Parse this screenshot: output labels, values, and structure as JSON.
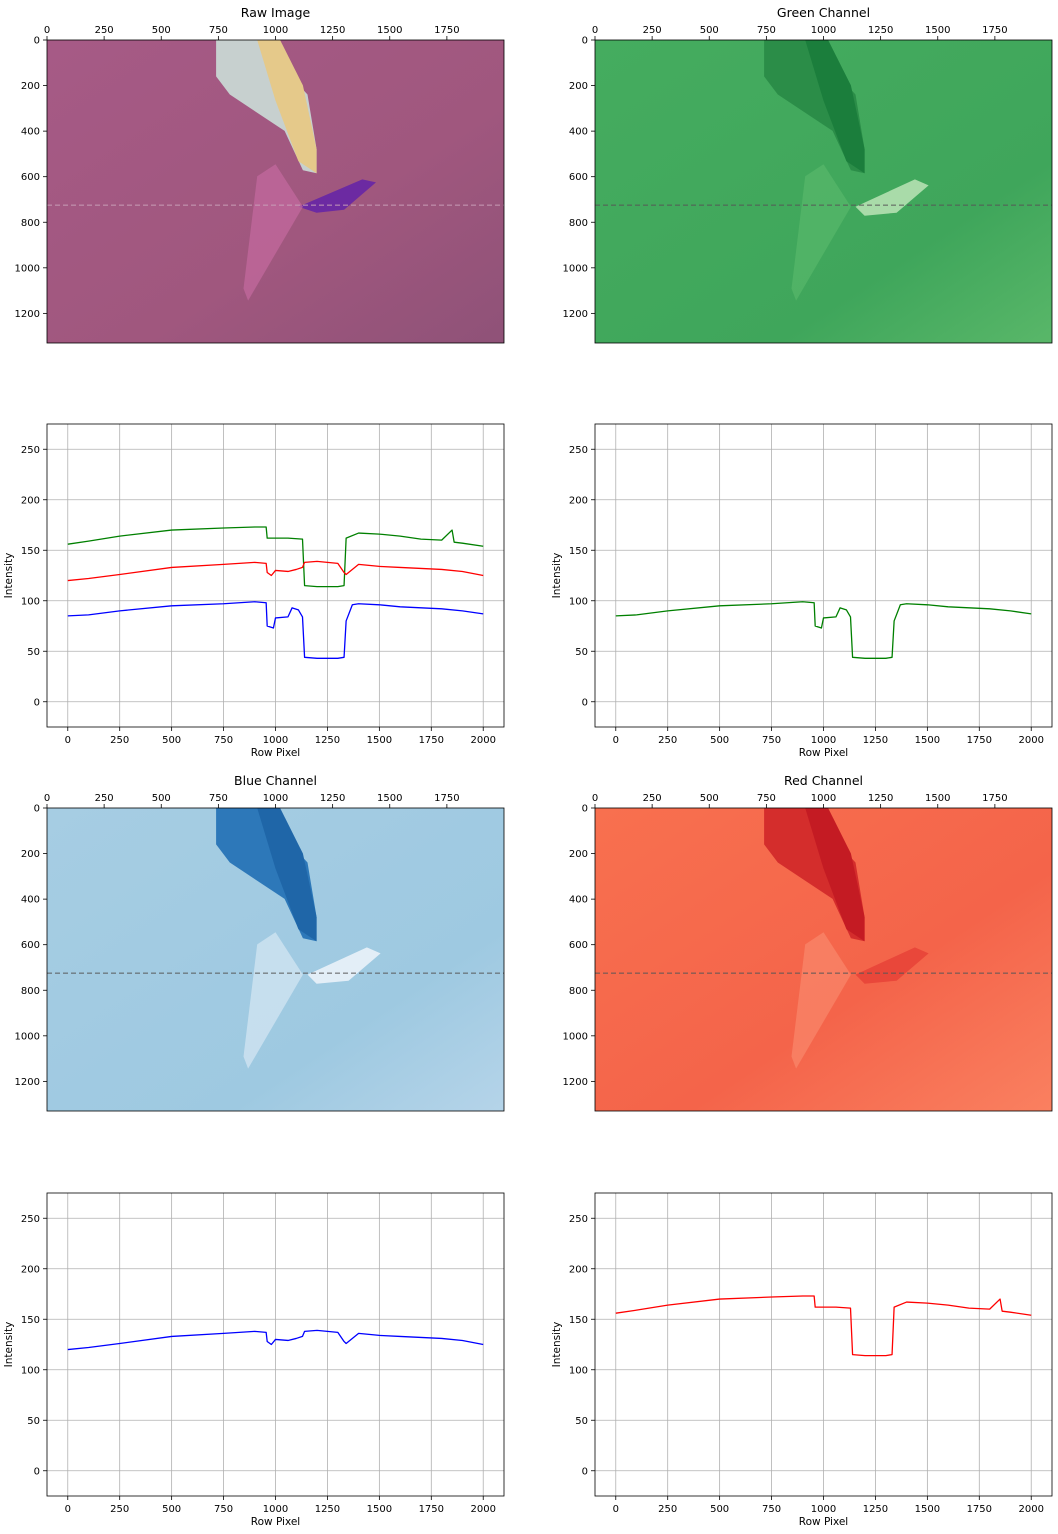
{
  "colors": {
    "raw_bg": "#a0577e",
    "green_bg": "#41a85c",
    "blue_bg": "#a9cfe4",
    "red_bg": "#f66a4a",
    "green_line": "#008000",
    "red_line": "#ff0000",
    "blue_line": "#0000ff",
    "grid": "#b0b0b0",
    "dashed_cut": "#555555"
  },
  "chart_data": [
    {
      "type": "image",
      "title": "Raw Image",
      "colormap": "rgb",
      "x_ticks": [
        "0",
        "250",
        "500",
        "750",
        "1000",
        "1250",
        "1500",
        "1750"
      ],
      "y_ticks": [
        "0",
        "200",
        "400",
        "600",
        "800",
        "1000",
        "1200"
      ],
      "xlim": [
        0,
        2000
      ],
      "ylim": [
        1330,
        0
      ],
      "cut_row": 725
    },
    {
      "type": "image",
      "title": "Green Channel",
      "colormap": "Greens",
      "x_ticks": [
        "0",
        "250",
        "500",
        "750",
        "1000",
        "1250",
        "1500",
        "1750"
      ],
      "y_ticks": [
        "0",
        "200",
        "400",
        "600",
        "800",
        "1000",
        "1200"
      ],
      "xlim": [
        0,
        2000
      ],
      "ylim": [
        1330,
        0
      ],
      "cut_row": 725
    },
    {
      "type": "line",
      "title": "",
      "xlabel": "Row Pixel",
      "ylabel": "Intensity",
      "xlim": [
        -100,
        2100
      ],
      "ylim": [
        -25,
        275
      ],
      "x_ticks": [
        "0",
        "250",
        "500",
        "750",
        "1000",
        "1250",
        "1500",
        "1750",
        "2000"
      ],
      "y_ticks": [
        "0",
        "50",
        "100",
        "150",
        "200",
        "250"
      ],
      "grid": true,
      "series": [
        {
          "color": "green",
          "x": [
            0,
            100,
            250,
            500,
            750,
            900,
            955,
            960,
            1000,
            1060,
            1130,
            1140,
            1200,
            1300,
            1330,
            1340,
            1400,
            1500,
            1600,
            1700,
            1800,
            1850,
            1860,
            1900,
            2000
          ],
          "values": [
            156,
            159,
            164,
            170,
            172,
            173,
            173,
            162,
            162,
            162,
            161,
            115,
            114,
            114,
            115,
            162,
            167,
            166,
            164,
            161,
            160,
            170,
            158,
            157,
            154
          ]
        },
        {
          "color": "red",
          "x": [
            0,
            100,
            250,
            500,
            750,
            900,
            955,
            960,
            980,
            1000,
            1060,
            1100,
            1130,
            1140,
            1200,
            1300,
            1330,
            1340,
            1400,
            1500,
            1600,
            1700,
            1800,
            1900,
            2000
          ],
          "values": [
            120,
            122,
            126,
            133,
            136,
            138,
            137,
            128,
            125,
            130,
            129,
            131,
            133,
            138,
            139,
            137,
            128,
            126,
            136,
            134,
            133,
            132,
            131,
            129,
            125
          ]
        },
        {
          "color": "blue",
          "x": [
            0,
            100,
            250,
            500,
            750,
            900,
            955,
            960,
            990,
            1000,
            1060,
            1080,
            1110,
            1130,
            1140,
            1200,
            1300,
            1330,
            1340,
            1370,
            1400,
            1500,
            1600,
            1700,
            1800,
            1900,
            2000
          ],
          "values": [
            85,
            86,
            90,
            95,
            97,
            99,
            98,
            75,
            73,
            83,
            84,
            93,
            91,
            84,
            44,
            43,
            43,
            44,
            80,
            96,
            97,
            96,
            94,
            93,
            92,
            90,
            87
          ]
        }
      ]
    },
    {
      "type": "line",
      "title": "",
      "xlabel": "Row Pixel",
      "ylabel": "Intensity",
      "xlim": [
        -100,
        2100
      ],
      "ylim": [
        -25,
        275
      ],
      "x_ticks": [
        "0",
        "250",
        "500",
        "750",
        "1000",
        "1250",
        "1500",
        "1750",
        "2000"
      ],
      "y_ticks": [
        "0",
        "50",
        "100",
        "150",
        "200",
        "250"
      ],
      "grid": true,
      "series": [
        {
          "color": "green",
          "x": [
            0,
            100,
            250,
            500,
            750,
            900,
            955,
            960,
            990,
            1000,
            1060,
            1080,
            1110,
            1130,
            1140,
            1200,
            1300,
            1330,
            1340,
            1370,
            1400,
            1500,
            1600,
            1700,
            1800,
            1900,
            2000
          ],
          "values": [
            85,
            86,
            90,
            95,
            97,
            99,
            98,
            75,
            73,
            83,
            84,
            93,
            91,
            84,
            44,
            43,
            43,
            44,
            80,
            96,
            97,
            96,
            94,
            93,
            92,
            90,
            87
          ]
        }
      ]
    },
    {
      "type": "image",
      "title": "Blue Channel",
      "colormap": "Blues",
      "x_ticks": [
        "0",
        "250",
        "500",
        "750",
        "1000",
        "1250",
        "1500",
        "1750"
      ],
      "y_ticks": [
        "0",
        "200",
        "400",
        "600",
        "800",
        "1000",
        "1200"
      ],
      "xlim": [
        0,
        2000
      ],
      "ylim": [
        1330,
        0
      ],
      "cut_row": 725
    },
    {
      "type": "image",
      "title": "Red Channel",
      "colormap": "Reds",
      "x_ticks": [
        "0",
        "250",
        "500",
        "750",
        "1000",
        "1250",
        "1500",
        "1750"
      ],
      "y_ticks": [
        "0",
        "200",
        "400",
        "600",
        "800",
        "1000",
        "1200"
      ],
      "xlim": [
        0,
        2000
      ],
      "ylim": [
        1330,
        0
      ],
      "cut_row": 725
    },
    {
      "type": "line",
      "title": "",
      "xlabel": "Row Pixel",
      "ylabel": "Intensity",
      "xlim": [
        -100,
        2100
      ],
      "ylim": [
        -25,
        275
      ],
      "x_ticks": [
        "0",
        "250",
        "500",
        "750",
        "1000",
        "1250",
        "1500",
        "1750",
        "2000"
      ],
      "y_ticks": [
        "0",
        "50",
        "100",
        "150",
        "200",
        "250"
      ],
      "grid": true,
      "series": [
        {
          "color": "blue",
          "x": [
            0,
            100,
            250,
            500,
            750,
            900,
            955,
            960,
            980,
            1000,
            1060,
            1100,
            1130,
            1140,
            1200,
            1300,
            1330,
            1340,
            1400,
            1500,
            1600,
            1700,
            1800,
            1900,
            2000
          ],
          "values": [
            120,
            122,
            126,
            133,
            136,
            138,
            137,
            128,
            125,
            130,
            129,
            131,
            133,
            138,
            139,
            137,
            128,
            126,
            136,
            134,
            133,
            132,
            131,
            129,
            125
          ]
        }
      ]
    },
    {
      "type": "line",
      "title": "",
      "xlabel": "Row Pixel",
      "ylabel": "Intensity",
      "xlim": [
        -100,
        2100
      ],
      "ylim": [
        -25,
        275
      ],
      "x_ticks": [
        "0",
        "250",
        "500",
        "750",
        "1000",
        "1250",
        "1500",
        "1750",
        "2000"
      ],
      "y_ticks": [
        "0",
        "50",
        "100",
        "150",
        "200",
        "250"
      ],
      "grid": true,
      "series": [
        {
          "color": "red",
          "x": [
            0,
            100,
            250,
            500,
            750,
            900,
            955,
            960,
            1000,
            1060,
            1130,
            1140,
            1200,
            1300,
            1330,
            1340,
            1400,
            1500,
            1600,
            1700,
            1800,
            1850,
            1860,
            1900,
            2000
          ],
          "values": [
            156,
            159,
            164,
            170,
            172,
            173,
            173,
            162,
            162,
            162,
            161,
            115,
            114,
            114,
            115,
            162,
            167,
            166,
            164,
            161,
            160,
            170,
            158,
            157,
            154
          ]
        }
      ]
    }
  ]
}
